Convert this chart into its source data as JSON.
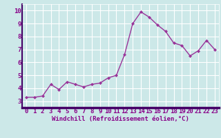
{
  "x": [
    0,
    1,
    2,
    3,
    4,
    5,
    6,
    7,
    8,
    9,
    10,
    11,
    12,
    13,
    14,
    15,
    16,
    17,
    18,
    19,
    20,
    21,
    22,
    23
  ],
  "y": [
    3.3,
    3.3,
    3.4,
    4.3,
    3.9,
    4.5,
    4.3,
    4.1,
    4.3,
    4.4,
    4.8,
    5.0,
    6.6,
    9.0,
    9.9,
    9.5,
    8.9,
    8.4,
    7.5,
    7.3,
    6.5,
    6.9,
    7.7,
    7.0
  ],
  "line_color": "#993399",
  "marker": "D",
  "marker_size": 2.2,
  "line_width": 1.0,
  "bg_color": "#cce8e8",
  "plot_bg_color": "#cce8e8",
  "grid_color": "#ffffff",
  "xlabel": "Windchill (Refroidissement éolien,°C)",
  "xlabel_color": "#880088",
  "xlabel_fontsize": 6.5,
  "tick_label_fontsize": 6.5,
  "tick_label_color": "#880088",
  "axis_bar_color": "#440066",
  "ylim": [
    2.5,
    10.5
  ],
  "yticks": [
    3,
    4,
    5,
    6,
    7,
    8,
    9,
    10
  ],
  "xticks": [
    0,
    1,
    2,
    3,
    4,
    5,
    6,
    7,
    8,
    9,
    10,
    11,
    12,
    13,
    14,
    15,
    16,
    17,
    18,
    19,
    20,
    21,
    22,
    23
  ]
}
